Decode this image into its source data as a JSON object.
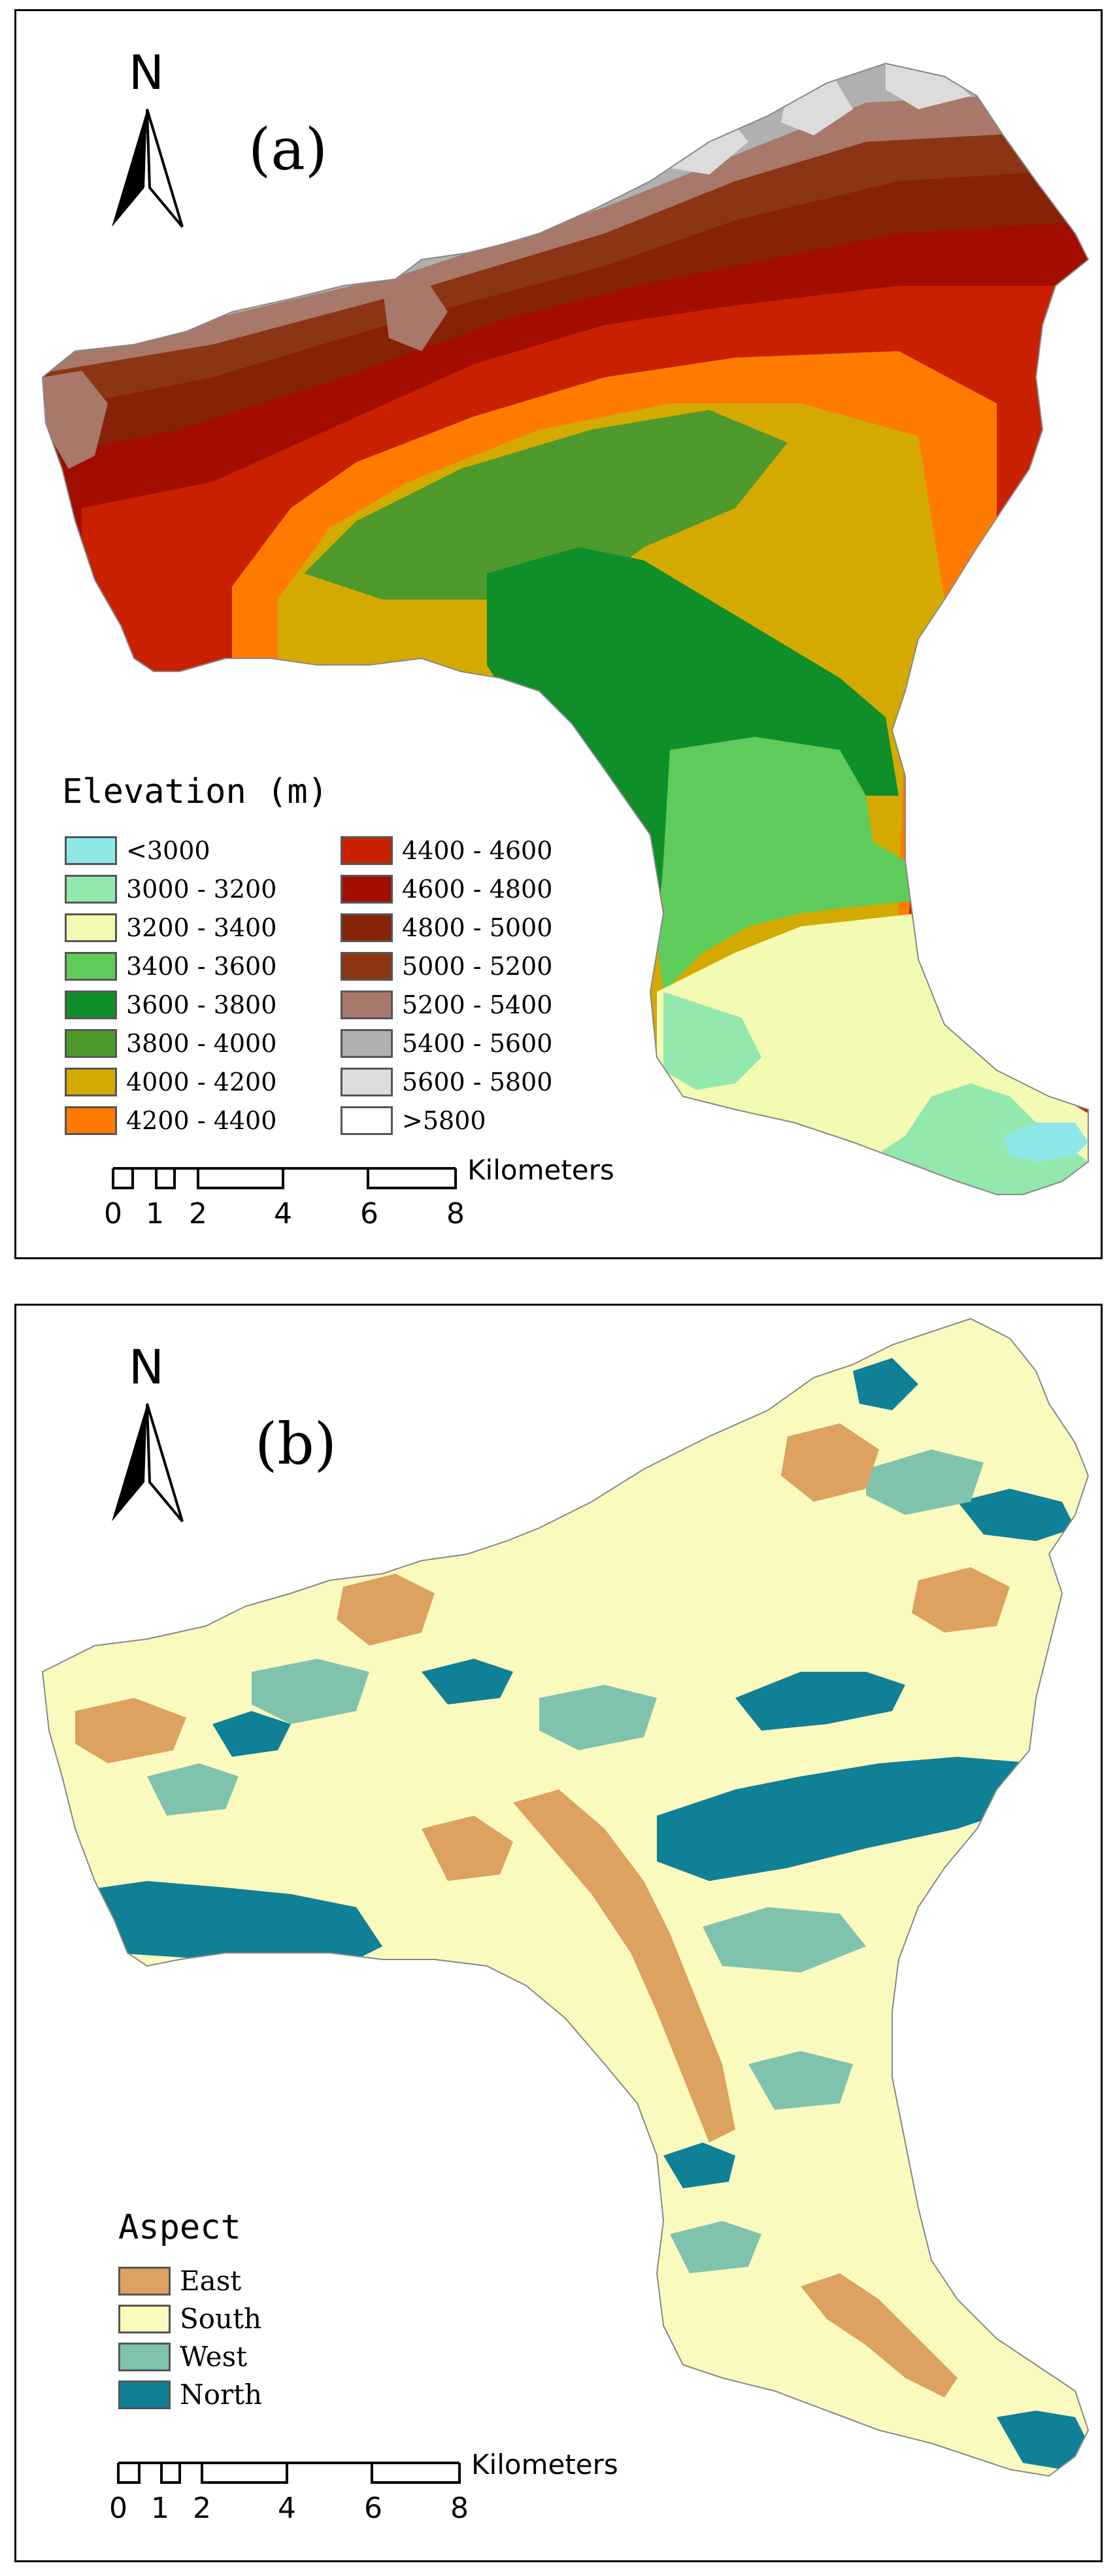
{
  "panel_a": {
    "label": "(a)",
    "north": "N",
    "legend_title": "Elevation (m)",
    "legend": [
      {
        "label": "<3000",
        "color": "#8ee8e8"
      },
      {
        "label": "3000 - 3200",
        "color": "#93e8ad"
      },
      {
        "label": "3200 - 3400",
        "color": "#f3fab2"
      },
      {
        "label": "3400 - 3600",
        "color": "#5ecb5a"
      },
      {
        "label": "3600 - 3800",
        "color": "#0e8f2a"
      },
      {
        "label": "3800 - 4000",
        "color": "#4e9a2c"
      },
      {
        "label": "4000 - 4200",
        "color": "#d4aa00"
      },
      {
        "label": "4200 - 4400",
        "color": "#ff7b00"
      },
      {
        "label": "4400 - 4600",
        "color": "#c92100"
      },
      {
        "label": "4600 - 4800",
        "color": "#a20d00"
      },
      {
        "label": "4800 - 5000",
        "color": "#862206"
      },
      {
        "label": "5000 - 5200",
        "color": "#8b3514"
      },
      {
        "label": "5200 - 5400",
        "color": "#a8786a"
      },
      {
        "label": "5400 - 5600",
        "color": "#b0b0b0"
      },
      {
        "label": "5600 - 5800",
        "color": "#dcdcdc"
      },
      {
        "label": ">5800",
        "color": "#ffffff"
      }
    ],
    "scale": {
      "unit": "Kilometers",
      "ticks": [
        "0",
        "1",
        "2",
        "4",
        "6",
        "8"
      ]
    }
  },
  "panel_b": {
    "label": "(b)",
    "north": "N",
    "legend_title": "Aspect",
    "legend": [
      {
        "label": "East",
        "color": "#dda160"
      },
      {
        "label": "South",
        "color": "#fafabf"
      },
      {
        "label": "West",
        "color": "#80c3ad"
      },
      {
        "label": "North",
        "color": "#0f8095"
      }
    ],
    "scale": {
      "unit": "Kilometers",
      "ticks": [
        "0",
        "1",
        "2",
        "4",
        "6",
        "8"
      ]
    }
  }
}
